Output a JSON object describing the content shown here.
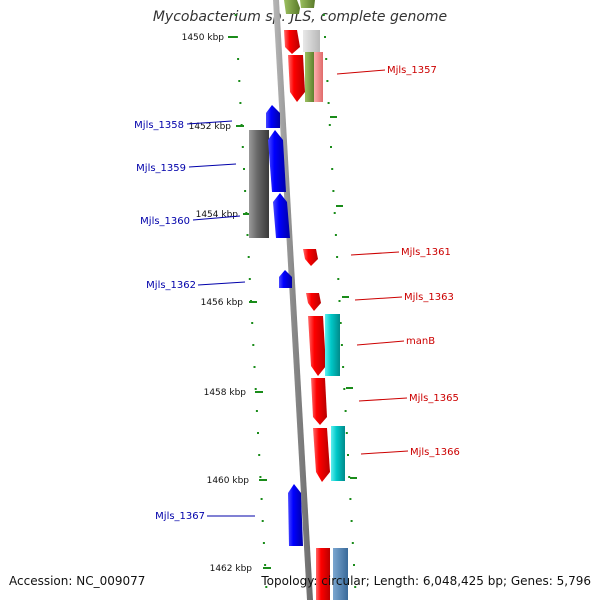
{
  "title": "Mycobacterium sp. JLS, complete genome",
  "accession_label": "Accession:",
  "accession": "NC_009077",
  "topology_label": "Topology:",
  "topology": "circular",
  "length_label": "Length:",
  "length": "6,048,425 bp",
  "genes_label": "Genes:",
  "genes": "5,796",
  "colors": {
    "forward_genes": "#e00000",
    "reverse_genes": "#0000e0",
    "forward_label": "#cc0000",
    "reverse_label": "#0000aa",
    "tick": "#1a8c1a",
    "backbone": "#888888",
    "gray_feature": "#666666",
    "cyan_feature": "#00bfbf"
  },
  "kbp_ticks": [
    {
      "label": "1450 kbp"
    },
    {
      "label": "1452 kbp"
    },
    {
      "label": "1454 kbp"
    },
    {
      "label": "1456 kbp"
    },
    {
      "label": "1458 kbp"
    },
    {
      "label": "1460 kbp"
    },
    {
      "label": "1462 kbp"
    }
  ],
  "genes_list": [
    {
      "label": "Mjls_1357",
      "strand": "forward"
    },
    {
      "label": "Mjls_1358",
      "strand": "reverse"
    },
    {
      "label": "Mjls_1359",
      "strand": "reverse"
    },
    {
      "label": "Mjls_1360",
      "strand": "reverse"
    },
    {
      "label": "Mjls_1361",
      "strand": "forward"
    },
    {
      "label": "Mjls_1362",
      "strand": "reverse"
    },
    {
      "label": "Mjls_1363",
      "strand": "forward"
    },
    {
      "label": "manB",
      "strand": "forward"
    },
    {
      "label": "Mjls_1365",
      "strand": "forward"
    },
    {
      "label": "Mjls_1366",
      "strand": "forward"
    },
    {
      "label": "Mjls_1367",
      "strand": "reverse"
    }
  ]
}
